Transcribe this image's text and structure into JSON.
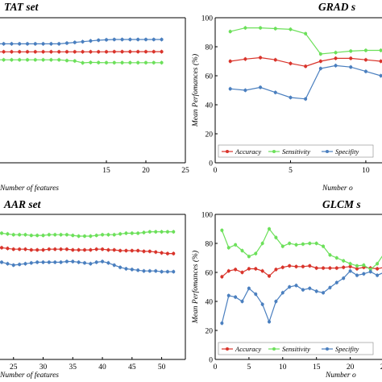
{
  "chart_data": [
    {
      "type": "line",
      "title": "TAT set",
      "xlabel": "Number of features",
      "ylabel": "",
      "xlim": [
        0,
        25
      ],
      "ylim": [
        0,
        100
      ],
      "x_ticks": [
        "15",
        "20",
        "25"
      ],
      "y_ticks": [],
      "legend": "none",
      "grid": false,
      "x": [
        1,
        2,
        3,
        4,
        5,
        6,
        7,
        8,
        9,
        10,
        11,
        12,
        13,
        14,
        15,
        16,
        17,
        18,
        19,
        20,
        21,
        22
      ],
      "series": [
        {
          "key": "accuracy",
          "values": [
            76.5,
            76.5,
            76.5,
            76.5,
            76.5,
            76.5,
            76.5,
            76.5,
            76.5,
            76.5,
            76.5,
            76.5,
            76.5,
            76.5,
            76.5,
            76.6,
            76.6,
            76.6,
            76.6,
            76.6,
            76.6,
            76.6
          ]
        },
        {
          "key": "sensitivity",
          "values": [
            71,
            71,
            71,
            71,
            71,
            71,
            71,
            71,
            71,
            70.5,
            70.2,
            68.9,
            69.2,
            69.1,
            69.0,
            69.0,
            69.0,
            69.0,
            69.0,
            69.0,
            69.0,
            69.0
          ]
        },
        {
          "key": "specificity",
          "values": [
            82,
            82,
            82,
            82,
            82,
            82,
            82,
            82,
            82,
            82.5,
            83,
            83.5,
            84,
            84.5,
            84.8,
            85,
            85,
            85,
            85,
            85,
            85,
            85
          ]
        }
      ]
    },
    {
      "type": "line",
      "title": "GRAD s",
      "xlabel": "Number o",
      "ylabel": "Mean Perfomances (%)",
      "xlim": [
        0,
        13
      ],
      "ylim": [
        0,
        100
      ],
      "x_ticks": [
        "0",
        "5",
        "10"
      ],
      "y_ticks": [
        "0",
        "20",
        "40",
        "60",
        "80",
        "100"
      ],
      "legend": "bottom",
      "grid": false,
      "x": [
        1,
        2,
        3,
        4,
        5,
        6,
        7,
        8,
        9,
        10,
        11,
        12,
        13
      ],
      "series": [
        {
          "key": "accuracy",
          "name": "Accuracy",
          "values": [
            70,
            71.5,
            72.5,
            71,
            68.5,
            66.5,
            70,
            72,
            72,
            71,
            70,
            69.5,
            67
          ]
        },
        {
          "key": "sensitivity",
          "name": "Sensitivity",
          "values": [
            90.5,
            93,
            93,
            92.5,
            92,
            89,
            75,
            76,
            77,
            77.5,
            77.5,
            77,
            72
          ]
        },
        {
          "key": "specificity",
          "name": "Specifity",
          "values": [
            51,
            50,
            52,
            48.5,
            45,
            44,
            65,
            67,
            66,
            63,
            60,
            58.5,
            64
          ]
        }
      ]
    },
    {
      "type": "line",
      "title": "AAR set",
      "xlabel": "Number of features",
      "ylabel": "",
      "xlim": [
        20,
        54
      ],
      "ylim": [
        0,
        100
      ],
      "x_ticks": [
        "25",
        "30",
        "35",
        "40",
        "45",
        "50"
      ],
      "y_ticks": [],
      "legend": "none",
      "grid": false,
      "x": [
        21,
        22,
        23,
        24,
        25,
        26,
        27,
        28,
        29,
        30,
        31,
        32,
        33,
        34,
        35,
        36,
        37,
        38,
        39,
        40,
        41,
        42,
        43,
        44,
        45,
        46,
        47,
        48,
        49,
        50,
        51,
        52
      ],
      "series": [
        {
          "key": "accuracy",
          "values": [
            78,
            77.5,
            77,
            76.5,
            76,
            76,
            76,
            75.5,
            75.5,
            75.5,
            76,
            76,
            76,
            76,
            75.5,
            75.5,
            75.5,
            75.5,
            76,
            76,
            75.5,
            75.5,
            75,
            75,
            75,
            75,
            74.5,
            74.5,
            74,
            73.5,
            73,
            73
          ]
        },
        {
          "key": "sensitivity",
          "values": [
            88,
            87.5,
            87,
            86.5,
            86,
            86,
            86,
            85.5,
            85.5,
            85.5,
            86,
            86,
            86,
            86,
            85.5,
            85,
            85,
            85,
            85.5,
            86,
            86,
            86,
            86.5,
            87,
            87,
            87,
            87.5,
            88,
            88,
            88,
            88,
            88
          ]
        },
        {
          "key": "specificity",
          "values": [
            68,
            67.5,
            67,
            66,
            65,
            65.5,
            66,
            66.5,
            67,
            67,
            67,
            67,
            67,
            67.5,
            67.5,
            67,
            66.5,
            66,
            67,
            67.5,
            66.5,
            65,
            63.5,
            62.5,
            62,
            61.5,
            61,
            61,
            61,
            60.5,
            60.5,
            60.5
          ]
        }
      ]
    },
    {
      "type": "line",
      "title": "GLCM s",
      "xlabel": "Number o",
      "ylabel": "Mean Perfomances (%)",
      "xlim": [
        0,
        29
      ],
      "ylim": [
        0,
        100
      ],
      "x_ticks": [
        "0",
        "5",
        "10",
        "15",
        "20",
        "25"
      ],
      "y_ticks": [
        "0",
        "20",
        "40",
        "60",
        "80",
        "100"
      ],
      "legend": "bottom",
      "grid": false,
      "x": [
        1,
        2,
        3,
        4,
        5,
        6,
        7,
        8,
        9,
        10,
        11,
        12,
        13,
        14,
        15,
        16,
        17,
        18,
        19,
        20,
        21,
        22,
        23,
        24,
        25,
        26,
        27,
        28,
        29
      ],
      "series": [
        {
          "key": "accuracy",
          "name": "Accuracy",
          "values": [
            57,
            61,
            62,
            60,
            62.5,
            62.5,
            61,
            57.5,
            62,
            63.5,
            64.5,
            64,
            64,
            64.5,
            63,
            63,
            63,
            63,
            63.5,
            64,
            62.5,
            63.5,
            63,
            62.5,
            63.5,
            64.5,
            66,
            66,
            66
          ]
        },
        {
          "key": "sensitivity",
          "name": "Sensitivity",
          "values": [
            89,
            77,
            79,
            75,
            71,
            73,
            80,
            90,
            84,
            78,
            80,
            79,
            79.5,
            80,
            80,
            78,
            72,
            70,
            68,
            66,
            64.5,
            65,
            62,
            66,
            73,
            75,
            75,
            75,
            75
          ]
        },
        {
          "key": "specificity",
          "name": "Specifity",
          "values": [
            25,
            44,
            43,
            40,
            49,
            45,
            38,
            26,
            40,
            46,
            50,
            51,
            48,
            49,
            47,
            46,
            49.5,
            53,
            56,
            61,
            58,
            59,
            60.5,
            58,
            60,
            56,
            54,
            56,
            56
          ]
        }
      ]
    }
  ],
  "colors": {
    "accuracy": "#d9342b",
    "sensitivity": "#6ce05a",
    "specificity": "#4a7fbf",
    "axis": "#000000"
  }
}
